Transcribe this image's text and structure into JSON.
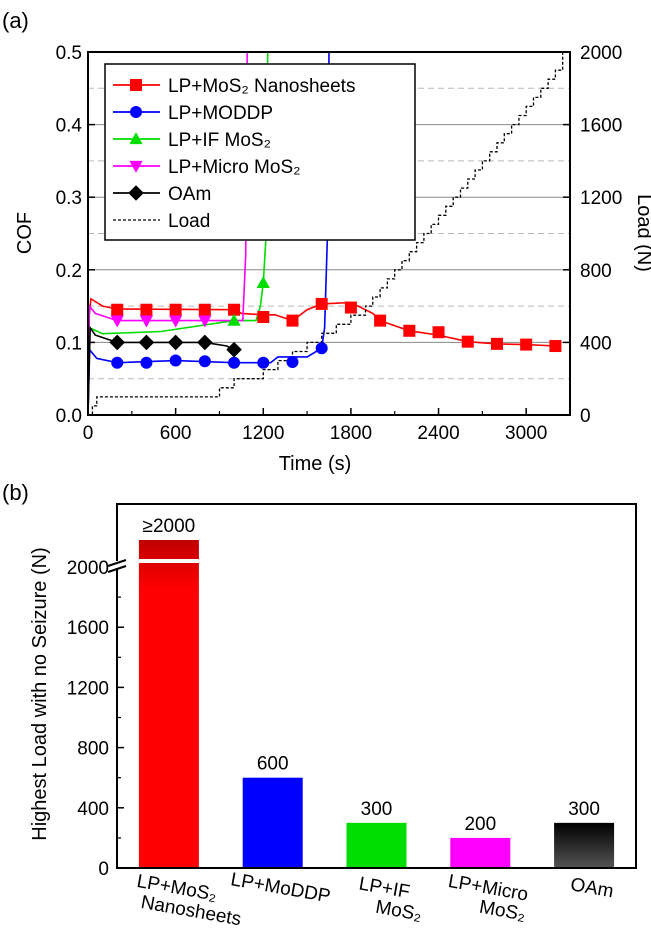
{
  "chart_data": [
    {
      "panel_label": "(a)",
      "type": "line",
      "xlabel": "Time (s)",
      "ylabel": "COF",
      "ylabel_right": "Load (N)",
      "xlim": [
        0,
        3300
      ],
      "ylim": [
        0,
        0.5
      ],
      "ylim_right": [
        0,
        2000
      ],
      "x_ticks": [
        0,
        600,
        1200,
        1800,
        2400,
        3000
      ],
      "y_ticks": [
        0.0,
        0.1,
        0.2,
        0.3,
        0.4,
        0.5
      ],
      "y_right_ticks": [
        0,
        400,
        800,
        1200,
        1600,
        2000
      ],
      "grid": "horizontal",
      "legend_position": "top-left",
      "series": [
        {
          "name": "LP+MoS₂ Nanosheets",
          "color": "#ff0000",
          "marker": "square",
          "markers": [
            [
              200,
              0.145
            ],
            [
              400,
              0.145
            ],
            [
              600,
              0.145
            ],
            [
              800,
              0.145
            ],
            [
              1000,
              0.145
            ],
            [
              1200,
              0.135
            ],
            [
              1400,
              0.13
            ],
            [
              1600,
              0.153
            ],
            [
              1800,
              0.148
            ],
            [
              2000,
              0.13
            ],
            [
              2200,
              0.116
            ],
            [
              2400,
              0.114
            ],
            [
              2600,
              0.101
            ],
            [
              2800,
              0.098
            ],
            [
              3000,
              0.097
            ],
            [
              3200,
              0.095
            ]
          ],
          "line": [
            [
              0,
              0.0
            ],
            [
              5,
              0.13
            ],
            [
              20,
              0.16
            ],
            [
              60,
              0.155
            ],
            [
              100,
              0.15
            ],
            [
              200,
              0.146
            ],
            [
              1000,
              0.145
            ],
            [
              1050,
              0.14
            ],
            [
              1200,
              0.138
            ],
            [
              1280,
              0.138
            ],
            [
              1400,
              0.13
            ],
            [
              1500,
              0.145
            ],
            [
              1600,
              0.153
            ],
            [
              1800,
              0.155
            ],
            [
              1950,
              0.14
            ],
            [
              2000,
              0.13
            ],
            [
              2200,
              0.116
            ],
            [
              2400,
              0.11
            ],
            [
              2600,
              0.101
            ],
            [
              2800,
              0.098
            ],
            [
              3000,
              0.097
            ],
            [
              3200,
              0.095
            ]
          ]
        },
        {
          "name": "LP+MODDP",
          "color": "#0000ff",
          "marker": "circle",
          "markers": [
            [
              200,
              0.072
            ],
            [
              400,
              0.072
            ],
            [
              600,
              0.075
            ],
            [
              800,
              0.074
            ],
            [
              1000,
              0.072
            ],
            [
              1200,
              0.072
            ],
            [
              1400,
              0.073
            ],
            [
              1600,
              0.092
            ]
          ],
          "line": [
            [
              0,
              0.0
            ],
            [
              10,
              0.09
            ],
            [
              60,
              0.078
            ],
            [
              200,
              0.072
            ],
            [
              600,
              0.075
            ],
            [
              1000,
              0.072
            ],
            [
              1250,
              0.072
            ],
            [
              1300,
              0.08
            ],
            [
              1500,
              0.08
            ],
            [
              1600,
              0.092
            ],
            [
              1620,
              0.12
            ],
            [
              1640,
              0.25
            ],
            [
              1650,
              0.5
            ]
          ]
        },
        {
          "name": "LP+IF MoS₂",
          "color": "#00dd00",
          "marker": "triangle-up",
          "markers": [
            [
              1000,
              0.13
            ],
            [
              1200,
              0.182
            ]
          ],
          "line": [
            [
              0,
              0.0
            ],
            [
              10,
              0.12
            ],
            [
              100,
              0.112
            ],
            [
              500,
              0.115
            ],
            [
              1000,
              0.13
            ],
            [
              1150,
              0.13
            ],
            [
              1180,
              0.15
            ],
            [
              1200,
              0.182
            ],
            [
              1220,
              0.25
            ],
            [
              1230,
              0.5
            ]
          ]
        },
        {
          "name": "LP+Micro MoS₂",
          "color": "#ff00ff",
          "marker": "triangle-down",
          "markers": [
            [
              200,
              0.13
            ],
            [
              400,
              0.13
            ],
            [
              600,
              0.13
            ],
            [
              800,
              0.13
            ]
          ],
          "line": [
            [
              0,
              0.0
            ],
            [
              10,
              0.15
            ],
            [
              50,
              0.14
            ],
            [
              200,
              0.13
            ],
            [
              1000,
              0.13
            ],
            [
              1060,
              0.13
            ],
            [
              1080,
              0.22
            ],
            [
              1090,
              0.5
            ]
          ]
        },
        {
          "name": "OAm",
          "color": "#000000",
          "marker": "diamond",
          "markers": [
            [
              200,
              0.1
            ],
            [
              400,
              0.1
            ],
            [
              600,
              0.1
            ],
            [
              800,
              0.1
            ],
            [
              1000,
              0.09
            ]
          ],
          "line": [
            [
              0,
              0.0
            ],
            [
              15,
              0.12
            ],
            [
              50,
              0.11
            ],
            [
              200,
              0.1
            ],
            [
              800,
              0.1
            ],
            [
              950,
              0.095
            ],
            [
              1000,
              0.09
            ]
          ]
        },
        {
          "name": "Load",
          "color": "#000000",
          "style": "dashed",
          "axis": "right",
          "line": [
            [
              0,
              0
            ],
            [
              30,
              0
            ],
            [
              30,
              50
            ],
            [
              60,
              50
            ],
            [
              60,
              100
            ],
            [
              900,
              100
            ],
            [
              900,
              150
            ],
            [
              1000,
              150
            ],
            [
              1000,
              200
            ],
            [
              1200,
              200
            ],
            [
              1200,
              250
            ],
            [
              1300,
              250
            ],
            [
              1300,
              300
            ],
            [
              1400,
              300
            ],
            [
              1400,
              350
            ],
            [
              1500,
              350
            ],
            [
              1500,
              400
            ],
            [
              1600,
              400
            ],
            [
              1600,
              450
            ],
            [
              1700,
              450
            ],
            [
              1700,
              500
            ],
            [
              1800,
              500
            ],
            [
              1800,
              550
            ],
            [
              1900,
              550
            ],
            [
              1900,
              600
            ],
            [
              1950,
              600
            ],
            [
              1950,
              650
            ],
            [
              2000,
              650
            ],
            [
              2000,
              700
            ],
            [
              2050,
              700
            ],
            [
              2050,
              750
            ],
            [
              2100,
              750
            ],
            [
              2100,
              800
            ],
            [
              2150,
              800
            ],
            [
              2150,
              850
            ],
            [
              2200,
              850
            ],
            [
              2200,
              900
            ],
            [
              2250,
              900
            ],
            [
              2250,
              950
            ],
            [
              2300,
              950
            ],
            [
              2300,
              1000
            ],
            [
              2350,
              1000
            ],
            [
              2350,
              1050
            ],
            [
              2400,
              1050
            ],
            [
              2400,
              1100
            ],
            [
              2450,
              1100
            ],
            [
              2450,
              1150
            ],
            [
              2500,
              1150
            ],
            [
              2500,
              1200
            ],
            [
              2550,
              1200
            ],
            [
              2550,
              1250
            ],
            [
              2600,
              1250
            ],
            [
              2600,
              1300
            ],
            [
              2650,
              1300
            ],
            [
              2650,
              1350
            ],
            [
              2700,
              1350
            ],
            [
              2700,
              1400
            ],
            [
              2750,
              1400
            ],
            [
              2750,
              1450
            ],
            [
              2800,
              1450
            ],
            [
              2800,
              1500
            ],
            [
              2850,
              1500
            ],
            [
              2850,
              1550
            ],
            [
              2900,
              1550
            ],
            [
              2900,
              1600
            ],
            [
              2950,
              1600
            ],
            [
              2950,
              1650
            ],
            [
              3000,
              1650
            ],
            [
              3000,
              1700
            ],
            [
              3050,
              1700
            ],
            [
              3050,
              1750
            ],
            [
              3100,
              1750
            ],
            [
              3100,
              1800
            ],
            [
              3150,
              1800
            ],
            [
              3150,
              1850
            ],
            [
              3200,
              1850
            ],
            [
              3200,
              1900
            ],
            [
              3250,
              1900
            ],
            [
              3250,
              2000
            ]
          ]
        }
      ]
    },
    {
      "panel_label": "(b)",
      "type": "bar",
      "ylabel": "Highest Load with no Seizure (N)",
      "ylim": [
        0,
        2000
      ],
      "y_ticks": [
        0,
        400,
        800,
        1200,
        1600,
        2000
      ],
      "axis_break": true,
      "categories": [
        "LP+MoS₂ Nanosheets",
        "LP+MoDDP",
        "LP+IF MoS₂",
        "LP+Micro MoS₂",
        "OAm"
      ],
      "values": [
        2000,
        600,
        300,
        200,
        300
      ],
      "value_labels": [
        "≥2000",
        "600",
        "300",
        "200",
        "300"
      ],
      "colors": [
        "#ff0000",
        "#0000ff",
        "#00dd00",
        "#ff00ff",
        "#000000"
      ]
    }
  ]
}
